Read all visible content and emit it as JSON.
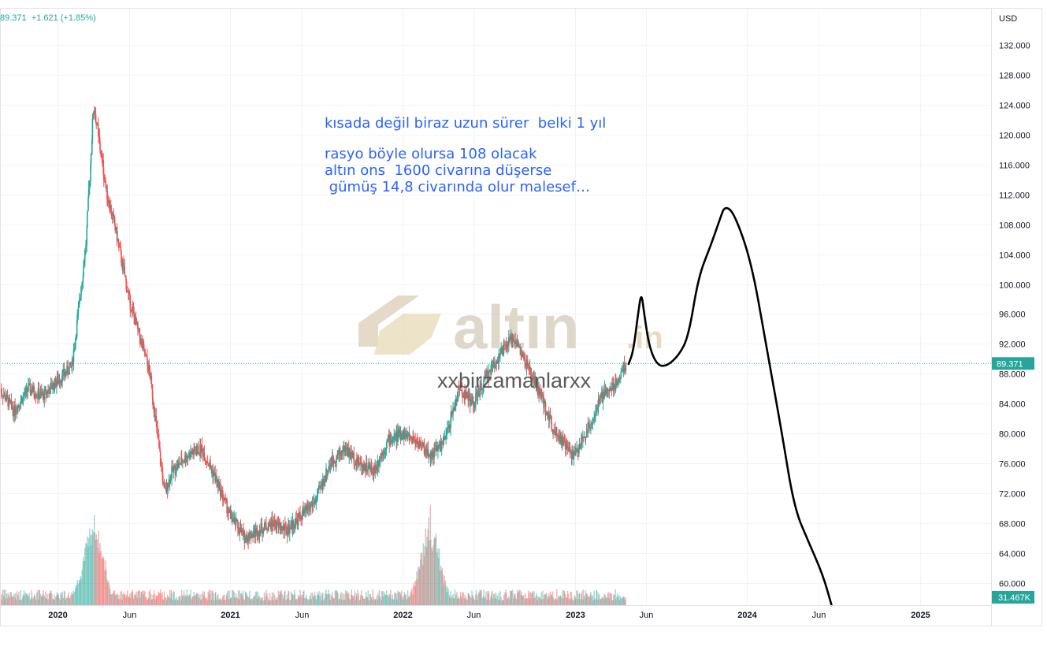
{
  "header": {
    "value": "89.371",
    "change": "+1.621",
    "change_pct": "(+1.85%)"
  },
  "annotations": {
    "line1": "kısada değil biraz uzun sürer  belki 1 yıl",
    "line2": "rasyo böyle olursa 108 olacak",
    "line3": "altın ons  1600 civarına düşerse",
    "line4": " gümüş 14,8 civarında olur malesef…"
  },
  "watermark": {
    "brand": "altın",
    "suffix": ".in",
    "user": "xxbirzamanlarxx"
  },
  "colors": {
    "up": "#26a69a",
    "down": "#ef5350",
    "annotation": "#2962ff",
    "drawing": "#000000",
    "watermark": "#d9cfb8"
  },
  "chart_data": {
    "type": "candlestick",
    "ylabel": "USD",
    "ylim": [
      57,
      137
    ],
    "yticks": [
      60,
      64,
      68,
      72,
      76,
      80,
      84,
      88,
      92,
      96,
      100,
      104,
      108,
      112,
      116,
      120,
      124,
      128,
      132
    ],
    "ytick_labels": [
      "60.000",
      "64.000",
      "68.000",
      "72.000",
      "76.000",
      "80.000",
      "84.000",
      "88.000",
      "92.000",
      "96.000",
      "100.000",
      "104.000",
      "108.000",
      "112.000",
      "116.000",
      "120.000",
      "124.000",
      "128.000",
      "132.000"
    ],
    "xlim": [
      "2019-09-01",
      "2025-06-01"
    ],
    "xticks": [
      "2020-01-01",
      "2020-06-01",
      "2021-01-01",
      "2021-06-01",
      "2022-01-01",
      "2022-06-01",
      "2023-01-01",
      "2023-06-01",
      "2024-01-01",
      "2024-06-01",
      "2025-01-01"
    ],
    "xtick_labels": [
      "2020",
      "Jun",
      "2021",
      "Jun",
      "2022",
      "Jun",
      "2023",
      "Jun",
      "2024",
      "Jun",
      "2025"
    ],
    "last_price": 89.371,
    "last_price_label": "89.371",
    "volume_label": "31.467K",
    "price_path": [
      [
        "2019-09-01",
        86
      ],
      [
        "2019-10-01",
        83
      ],
      [
        "2019-11-01",
        86
      ],
      [
        "2019-12-01",
        85
      ],
      [
        "2020-01-01",
        87
      ],
      [
        "2020-02-01",
        89
      ],
      [
        "2020-03-01",
        105
      ],
      [
        "2020-03-18",
        124
      ],
      [
        "2020-04-15",
        112
      ],
      [
        "2020-05-01",
        108
      ],
      [
        "2020-06-01",
        98
      ],
      [
        "2020-07-15",
        88
      ],
      [
        "2020-08-15",
        72
      ],
      [
        "2020-09-01",
        75
      ],
      [
        "2020-10-01",
        77
      ],
      [
        "2020-11-01",
        78
      ],
      [
        "2020-12-01",
        74
      ],
      [
        "2021-01-01",
        69
      ],
      [
        "2021-02-01",
        66
      ],
      [
        "2021-03-01",
        67
      ],
      [
        "2021-04-01",
        68
      ],
      [
        "2021-05-01",
        67
      ],
      [
        "2021-06-01",
        69
      ],
      [
        "2021-07-01",
        71
      ],
      [
        "2021-08-01",
        76
      ],
      [
        "2021-09-01",
        78
      ],
      [
        "2021-10-01",
        76
      ],
      [
        "2021-11-01",
        75
      ],
      [
        "2021-12-01",
        79
      ],
      [
        "2022-01-01",
        80
      ],
      [
        "2022-02-01",
        79
      ],
      [
        "2022-03-01",
        77
      ],
      [
        "2022-04-01",
        79
      ],
      [
        "2022-05-01",
        86
      ],
      [
        "2022-06-01",
        84
      ],
      [
        "2022-07-01",
        88
      ],
      [
        "2022-08-01",
        91
      ],
      [
        "2022-08-25",
        93
      ],
      [
        "2022-09-15",
        90
      ],
      [
        "2022-10-15",
        86
      ],
      [
        "2022-11-15",
        81
      ],
      [
        "2022-12-15",
        78
      ],
      [
        "2023-01-01",
        77
      ],
      [
        "2023-02-01",
        81
      ],
      [
        "2023-03-01",
        85
      ],
      [
        "2023-04-01",
        87
      ],
      [
        "2023-04-20",
        89.4
      ]
    ],
    "volume_spikes": [
      "2020-03-18",
      "2022-03-01"
    ],
    "projection": [
      [
        "2023-04-25",
        89.3
      ],
      [
        "2023-05-05",
        91.0
      ],
      [
        "2023-05-15",
        96.0
      ],
      [
        "2023-05-22",
        99.0
      ],
      [
        "2023-05-28",
        96.0
      ],
      [
        "2023-06-08",
        91.5
      ],
      [
        "2023-06-25",
        89.1
      ],
      [
        "2023-07-15",
        89.0
      ],
      [
        "2023-08-10",
        90.5
      ],
      [
        "2023-08-30",
        93.0
      ],
      [
        "2023-09-20",
        101.0
      ],
      [
        "2023-10-15",
        105.0
      ],
      [
        "2023-11-05",
        108.8
      ],
      [
        "2023-11-15",
        110.5
      ],
      [
        "2023-12-05",
        109.5
      ],
      [
        "2024-01-10",
        103.0
      ],
      [
        "2024-02-10",
        92.0
      ],
      [
        "2024-03-15",
        80.0
      ],
      [
        "2024-04-10",
        70.0
      ],
      [
        "2024-05-10",
        65.5
      ],
      [
        "2024-06-10",
        61.0
      ],
      [
        "2024-06-28",
        57.0
      ]
    ]
  }
}
